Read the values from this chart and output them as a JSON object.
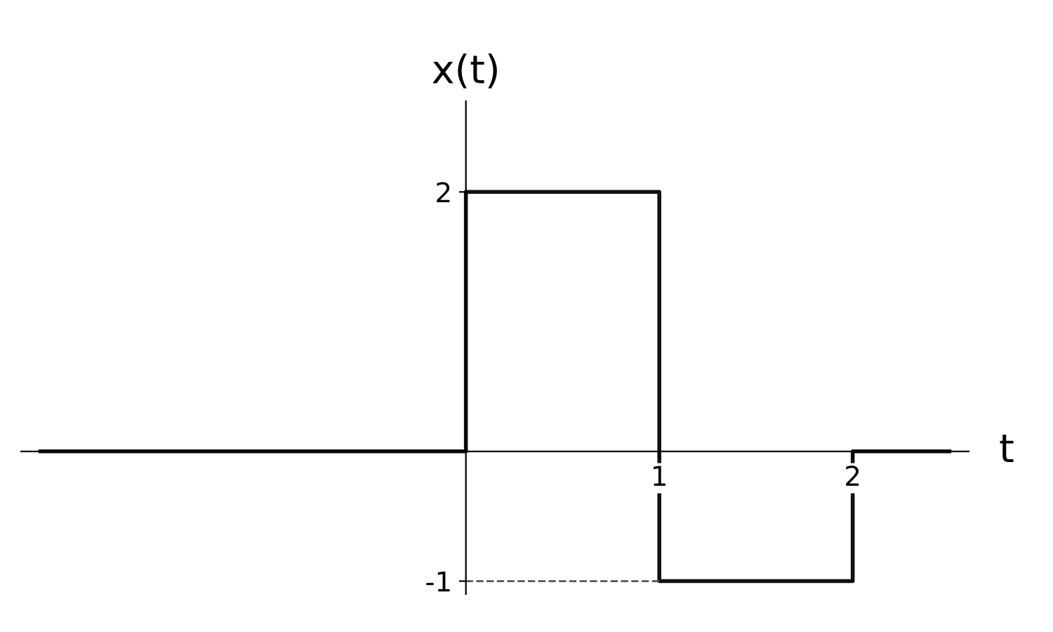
{
  "chart_data": {
    "type": "step",
    "ylabel": "x(t)",
    "xlabel": "t",
    "x": [
      -2.2,
      0,
      1,
      2,
      2.5
    ],
    "series": [
      {
        "color": "#111111",
        "values": [
          0,
          2,
          -1,
          0,
          0
        ]
      }
    ],
    "xlim": [
      -2.3,
      2.6
    ],
    "ylim": [
      -1.1,
      2.7
    ],
    "xticks": [
      1,
      2
    ],
    "yticks": [
      2,
      -1
    ],
    "ref_lines": [
      {
        "axis": "y",
        "value": -1,
        "line_style": "dashed",
        "color": "#555555"
      }
    ],
    "grid": false,
    "legend": false,
    "marker": "none",
    "line_style": "solid"
  }
}
